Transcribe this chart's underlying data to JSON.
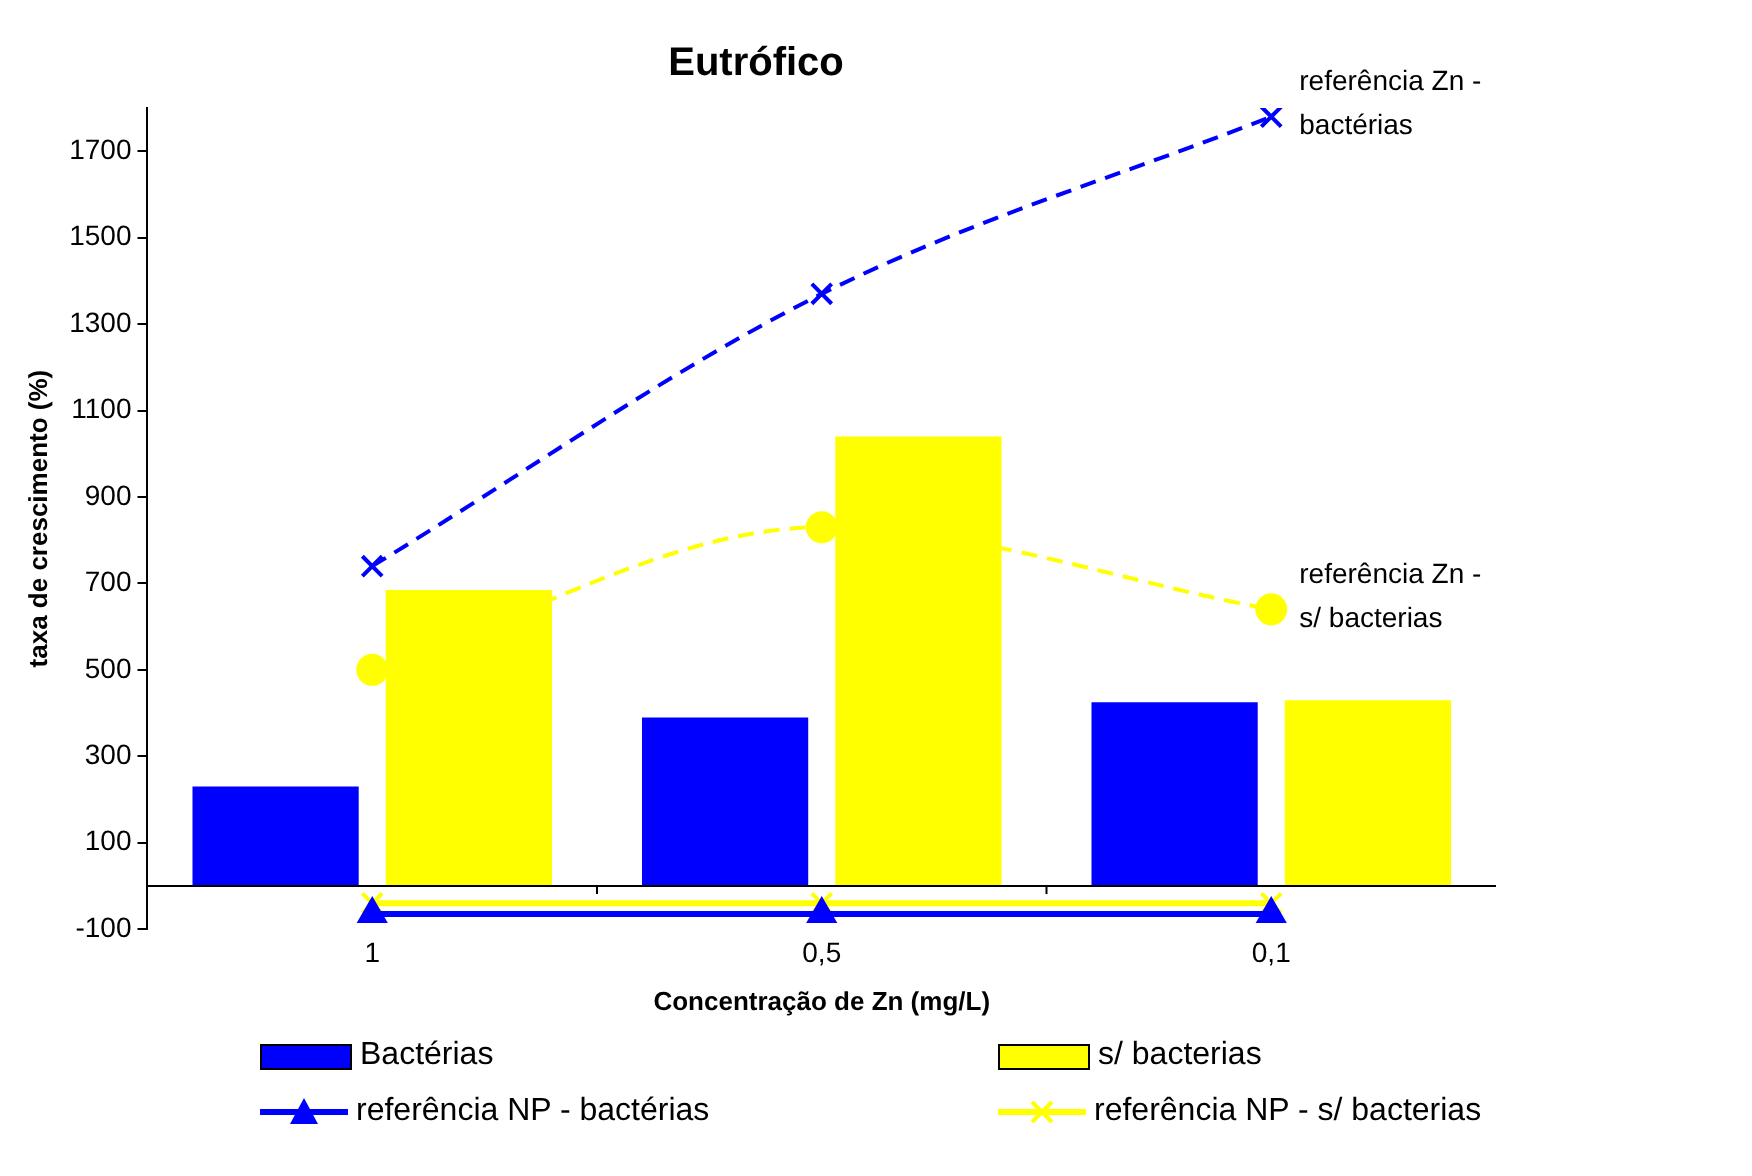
{
  "chart_data": {
    "type": "bar",
    "title": "Eutrófico",
    "xlabel": "Concentração de Zn (mg/L)",
    "ylabel": "taxa de crescimento (%)",
    "categories": [
      "1",
      "0,5",
      "0,1"
    ],
    "series": [
      {
        "name": "Bactérias",
        "color": "#0000ff",
        "values": [
          230,
          390,
          425
        ]
      },
      {
        "name": "s/ bacterias",
        "color": "#ffff00",
        "values": [
          685,
          1040,
          430
        ]
      },
      {
        "type": "line",
        "color": "#0000ff",
        "values": [
          740,
          1370,
          1780
        ],
        "marker": "cross",
        "line_style": "dashed"
      },
      {
        "type": "line",
        "color": "#ffff00",
        "values": [
          500,
          830,
          640
        ],
        "marker": "circle",
        "line_style": "dashed"
      },
      {
        "name": "referência NP - bactérias",
        "type": "line",
        "color": "#0000ff",
        "values": [
          -65,
          -65,
          -65
        ],
        "marker": "triangle",
        "line_style": "solid"
      },
      {
        "name": "referência NP - s/ bacterias",
        "type": "line",
        "color": "#ffff00",
        "values": [
          -40,
          -40,
          -40
        ],
        "marker": "cross",
        "line_style": "solid"
      }
    ],
    "annotations": [
      {
        "text": "referência Zn - bactérias",
        "x": "0,1",
        "y": 1780
      },
      {
        "text": "referência Zn - s/ bacterias",
        "x": "0,1",
        "y": 640
      }
    ],
    "ylim": [
      -100,
      1800
    ],
    "yticks": [
      -100,
      100,
      300,
      500,
      700,
      900,
      1100,
      1300,
      1500,
      1700
    ],
    "grid": false,
    "legend": "bottom"
  }
}
